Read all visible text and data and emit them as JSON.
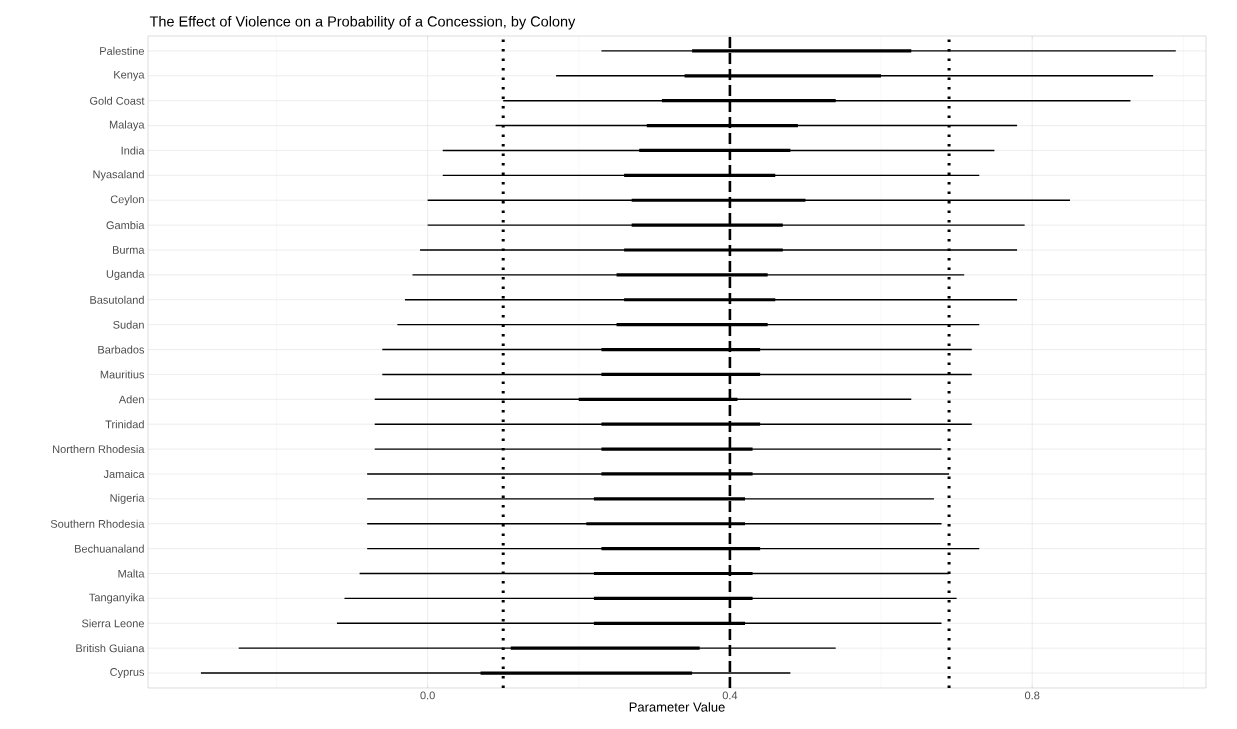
{
  "chart_data": {
    "type": "bar",
    "orientation": "horizontal",
    "title": "The Effect of Violence on a Probability of a Concession, by Colony",
    "xlabel": "Parameter Value",
    "categories": [
      "Palestine",
      "Kenya",
      "Gold Coast",
      "Malaya",
      "India",
      "Nyasaland",
      "Ceylon",
      "Gambia",
      "Burma",
      "Uganda",
      "Basutoland",
      "Sudan",
      "Barbados",
      "Mauritius",
      "Aden",
      "Trinidad",
      "Northern Rhodesia",
      "Jamaica",
      "Nigeria",
      "Southern Rhodesia",
      "Bechuanaland",
      "Malta",
      "Tanganyika",
      "Sierra Leone",
      "British Guiana",
      "Cyprus"
    ],
    "series": [
      {
        "color": "#000000",
        "base": [
          0.23,
          0.17,
          0.1,
          0.09,
          0.02,
          0.02,
          0.0,
          0.0,
          -0.01,
          -0.02,
          -0.03,
          -0.04,
          -0.06,
          -0.06,
          -0.07,
          -0.07,
          -0.07,
          -0.08,
          -0.08,
          -0.08,
          -0.08,
          -0.09,
          -0.11,
          -0.12,
          -0.25,
          -0.3
        ],
        "values": [
          0.76,
          0.79,
          0.83,
          0.69,
          0.73,
          0.71,
          0.85,
          0.79,
          0.79,
          0.73,
          0.81,
          0.77,
          0.78,
          0.78,
          0.71,
          0.79,
          0.75,
          0.77,
          0.75,
          0.76,
          0.81,
          0.78,
          0.81,
          0.8,
          0.79,
          0.78
        ]
      },
      {
        "color": "#000000",
        "base": [
          0.35,
          0.34,
          0.31,
          0.29,
          0.28,
          0.26,
          0.27,
          0.27,
          0.26,
          0.25,
          0.26,
          0.25,
          0.23,
          0.23,
          0.2,
          0.23,
          0.23,
          0.23,
          0.22,
          0.21,
          0.23,
          0.22,
          0.22,
          0.22,
          0.11,
          0.07
        ],
        "values": [
          0.29,
          0.26,
          0.23,
          0.2,
          0.2,
          0.2,
          0.23,
          0.2,
          0.21,
          0.2,
          0.2,
          0.2,
          0.21,
          0.21,
          0.21,
          0.21,
          0.2,
          0.2,
          0.2,
          0.21,
          0.21,
          0.21,
          0.21,
          0.2,
          0.25,
          0.28
        ]
      }
    ],
    "xlim": [
      -0.37,
      1.03
    ],
    "xticks": [
      {
        "value": -0.2,
        "label": null
      },
      {
        "value": 0,
        "label": "0.0"
      },
      {
        "value": 0.2,
        "label": null
      },
      {
        "value": 0.4,
        "label": "0.4"
      },
      {
        "value": 0.6,
        "label": null
      },
      {
        "value": 0.8,
        "label": "0.8"
      },
      {
        "value": 1.0,
        "label": null
      }
    ],
    "ref_lines": [
      {
        "axis": "x",
        "value": 0.1,
        "line_style": "dotted"
      },
      {
        "axis": "x",
        "value": 0.4,
        "line_style": "dashed"
      },
      {
        "axis": "x",
        "value": 0.69,
        "line_style": "dotted"
      }
    ],
    "grid": true
  }
}
